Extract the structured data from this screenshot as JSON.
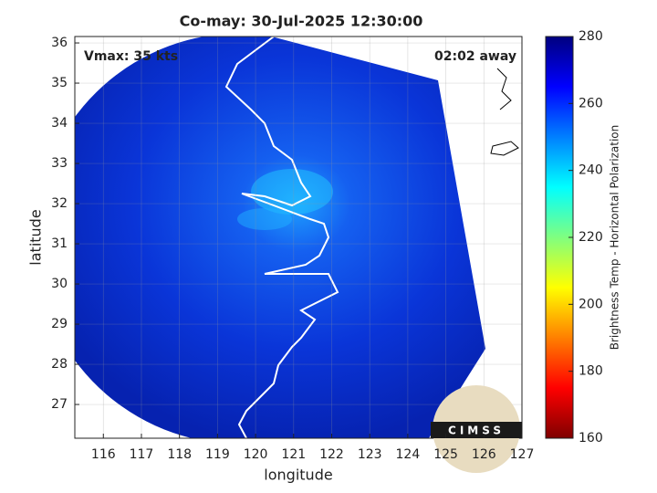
{
  "chart_data": {
    "type": "image",
    "title": "Co-may: 30-Jul-2025 12:30:00",
    "xlabel": "longitude",
    "ylabel": "latitude",
    "annotations": [
      "Vmax: 35 kts",
      "02:02 away"
    ],
    "xlim": [
      115.25,
      127
    ],
    "ylim": [
      26.16,
      36.16
    ],
    "xticks": [
      116,
      117,
      118,
      119,
      120,
      121,
      122,
      123,
      124,
      125,
      126,
      127
    ],
    "yticks": [
      27,
      28,
      29,
      30,
      31,
      32,
      33,
      34,
      35,
      36
    ],
    "grid": true,
    "colorbar": {
      "label": "Brightness Temp - Horizontal Polarization",
      "lim": [
        160,
        280
      ],
      "ticks": [
        160,
        180,
        200,
        220,
        240,
        260,
        280
      ]
    },
    "logo_text": "CIMSS"
  }
}
